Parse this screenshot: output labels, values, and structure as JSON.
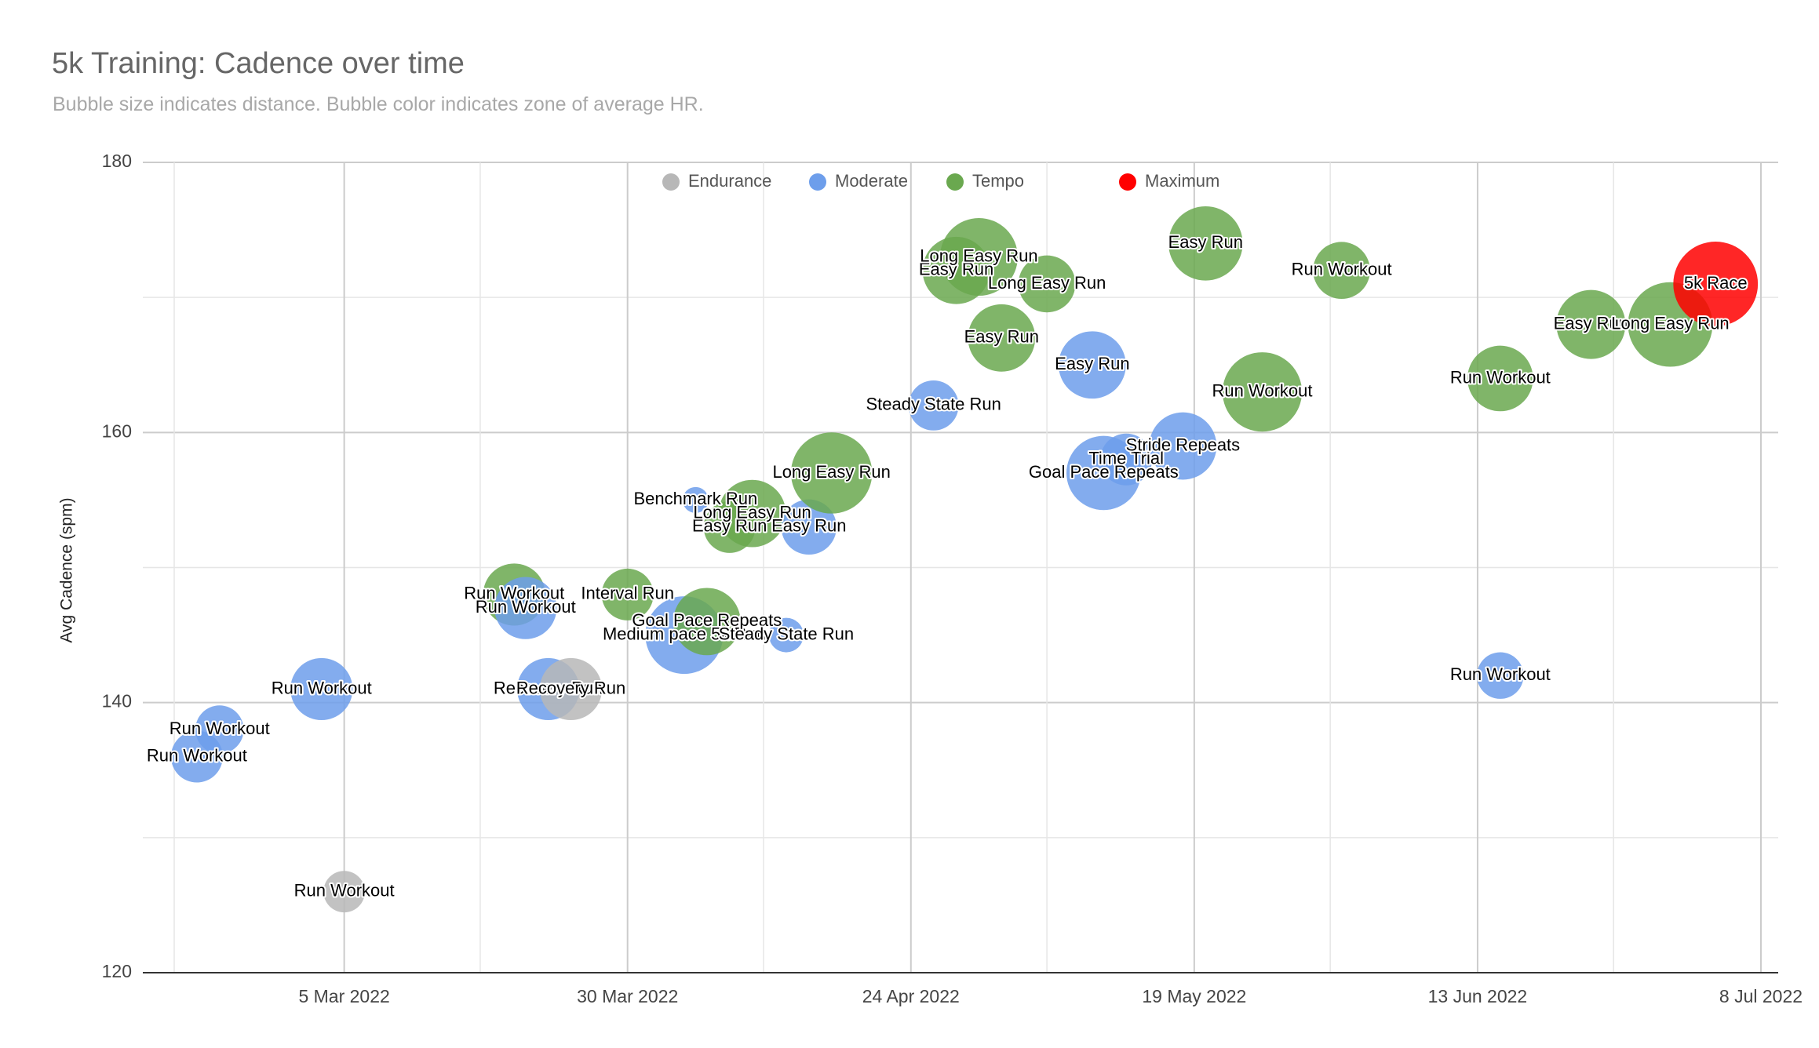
{
  "chart_data": {
    "type": "scatter",
    "title": "5k Training: Cadence over time",
    "subtitle": "Bubble size indicates distance. Bubble color indicates zone of average HR.",
    "xlabel": "",
    "ylabel": "Avg Cadence (spm)",
    "xlim": [
      "2022-02-18",
      "2022-07-08"
    ],
    "ylim": [
      120,
      180
    ],
    "x_ticks": [
      "5 Mar 2022",
      "30 Mar 2022",
      "24 Apr 2022",
      "19 May 2022",
      "13 Jun 2022",
      "8 Jul 2022"
    ],
    "y_ticks": [
      "120",
      "140",
      "160",
      "180"
    ],
    "grid": true,
    "legend_position": "top",
    "series": [
      {
        "name": "Endurance",
        "color": "#b7b7b7"
      },
      {
        "name": "Moderate",
        "color": "#6d9eeb"
      },
      {
        "name": "Tempo",
        "color": "#6aa84f"
      },
      {
        "name": "Maximum",
        "color": "#ff0000"
      }
    ],
    "points": [
      {
        "date": "2022-02-20",
        "cadence": 136,
        "size": 3.0,
        "zone": "Moderate",
        "label": "Run Workout"
      },
      {
        "date": "2022-02-22",
        "cadence": 138,
        "size": 2.8,
        "zone": "Moderate",
        "label": "Run Workout"
      },
      {
        "date": "2022-03-03",
        "cadence": 141,
        "size": 3.6,
        "zone": "Moderate",
        "label": "Run Workout"
      },
      {
        "date": "2022-03-05",
        "cadence": 126,
        "size": 2.4,
        "zone": "Endurance",
        "label": "Run Workout"
      },
      {
        "date": "2022-03-20",
        "cadence": 148,
        "size": 3.6,
        "zone": "Tempo",
        "label": "Run Workout"
      },
      {
        "date": "2022-03-21",
        "cadence": 147,
        "size": 3.6,
        "zone": "Moderate",
        "label": "Run Workout"
      },
      {
        "date": "2022-03-23",
        "cadence": 141,
        "size": 3.6,
        "zone": "Moderate",
        "label": "Recovery Run"
      },
      {
        "date": "2022-03-25",
        "cadence": 141,
        "size": 3.6,
        "zone": "Endurance",
        "label": "Recovery Run"
      },
      {
        "date": "2022-03-30",
        "cadence": 148,
        "size": 3.0,
        "zone": "Tempo",
        "label": "Interval Run"
      },
      {
        "date": "2022-04-04",
        "cadence": 145,
        "size": 4.5,
        "zone": "Moderate",
        "label": "Medium pace 5k Run"
      },
      {
        "date": "2022-04-06",
        "cadence": 146,
        "size": 3.9,
        "zone": "Tempo",
        "label": "Goal Pace Repeats"
      },
      {
        "date": "2022-04-05",
        "cadence": 155,
        "size": 1.5,
        "zone": "Moderate",
        "label": "Benchmark Run"
      },
      {
        "date": "2022-04-08",
        "cadence": 153,
        "size": 3.0,
        "zone": "Tempo",
        "label": "Easy Run"
      },
      {
        "date": "2022-04-10",
        "cadence": 154,
        "size": 3.9,
        "zone": "Tempo",
        "label": "Long Easy Run"
      },
      {
        "date": "2022-04-13",
        "cadence": 145,
        "size": 2.0,
        "zone": "Moderate",
        "label": "Steady State Run"
      },
      {
        "date": "2022-04-15",
        "cadence": 153,
        "size": 3.2,
        "zone": "Moderate",
        "label": "Easy Run"
      },
      {
        "date": "2022-04-17",
        "cadence": 157,
        "size": 4.7,
        "zone": "Tempo",
        "label": "Long Easy Run"
      },
      {
        "date": "2022-04-26",
        "cadence": 162,
        "size": 2.9,
        "zone": "Moderate",
        "label": "Steady State Run"
      },
      {
        "date": "2022-04-28",
        "cadence": 172,
        "size": 3.9,
        "zone": "Tempo",
        "label": "Easy Run"
      },
      {
        "date": "2022-04-30",
        "cadence": 173,
        "size": 4.5,
        "zone": "Tempo",
        "label": "Long Easy Run"
      },
      {
        "date": "2022-05-02",
        "cadence": 167,
        "size": 3.9,
        "zone": "Tempo",
        "label": "Easy Run"
      },
      {
        "date": "2022-05-06",
        "cadence": 171,
        "size": 3.3,
        "zone": "Tempo",
        "label": "Long Easy Run"
      },
      {
        "date": "2022-05-10",
        "cadence": 165,
        "size": 3.9,
        "zone": "Moderate",
        "label": "Easy Run"
      },
      {
        "date": "2022-05-11",
        "cadence": 157,
        "size": 4.3,
        "zone": "Moderate",
        "label": "Goal Pace Repeats"
      },
      {
        "date": "2022-05-13",
        "cadence": 158,
        "size": 3.0,
        "zone": "Moderate",
        "label": "Time Trial"
      },
      {
        "date": "2022-05-18",
        "cadence": 159,
        "size": 3.9,
        "zone": "Moderate",
        "label": "Stride Repeats"
      },
      {
        "date": "2022-05-20",
        "cadence": 174,
        "size": 4.3,
        "zone": "Tempo",
        "label": "Easy Run"
      },
      {
        "date": "2022-05-25",
        "cadence": 163,
        "size": 4.6,
        "zone": "Tempo",
        "label": "Run Workout"
      },
      {
        "date": "2022-06-01",
        "cadence": 172,
        "size": 3.3,
        "zone": "Tempo",
        "label": "Run Workout"
      },
      {
        "date": "2022-06-15",
        "cadence": 142,
        "size": 2.7,
        "zone": "Moderate",
        "label": "Run Workout"
      },
      {
        "date": "2022-06-15",
        "cadence": 164,
        "size": 3.8,
        "zone": "Tempo",
        "label": "Run Workout"
      },
      {
        "date": "2022-06-23",
        "cadence": 168,
        "size": 4.0,
        "zone": "Tempo",
        "label": "Easy Run"
      },
      {
        "date": "2022-06-30",
        "cadence": 168,
        "size": 4.9,
        "zone": "Tempo",
        "label": "Long Easy Run"
      },
      {
        "date": "2022-07-04",
        "cadence": 171,
        "size": 4.9,
        "zone": "Maximum",
        "label": "5k Race"
      }
    ]
  }
}
